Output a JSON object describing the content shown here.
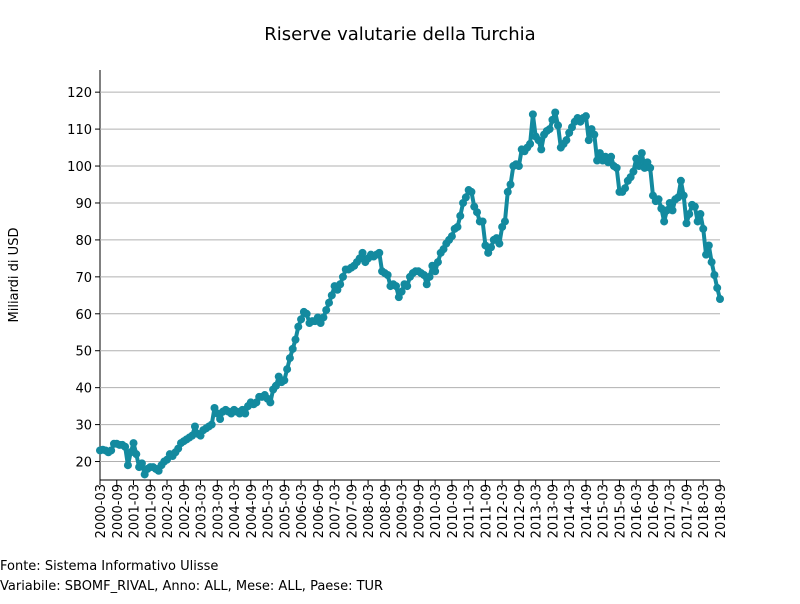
{
  "chart_data": {
    "type": "line",
    "title": "Riserve valutarie della Turchia",
    "y_label": "Miliardi di USD",
    "source": "Fonte: Sistema Informativo Ulisse",
    "note": "Variabile: SBOMF_RIVAL, Anno: ALL, Mese: ALL, Paese: TUR",
    "color": "#138a9f",
    "grid": true,
    "ylim": [
      15,
      126
    ],
    "yticks": [
      20,
      30,
      40,
      50,
      60,
      70,
      80,
      90,
      100,
      110,
      120
    ],
    "categories": [
      "2000-03",
      null,
      null,
      null,
      null,
      null,
      "2000-09",
      null,
      null,
      null,
      null,
      null,
      "2001-03",
      null,
      null,
      null,
      null,
      null,
      "2001-09",
      null,
      null,
      null,
      null,
      null,
      "2002-03",
      null,
      null,
      null,
      null,
      null,
      "2002-09",
      null,
      null,
      null,
      null,
      null,
      "2003-03",
      null,
      null,
      null,
      null,
      null,
      "2003-09",
      null,
      null,
      null,
      null,
      null,
      "2004-03",
      null,
      null,
      null,
      null,
      null,
      "2004-09",
      null,
      null,
      null,
      null,
      null,
      "2005-03",
      null,
      null,
      null,
      null,
      null,
      "2005-09",
      null,
      null,
      null,
      null,
      null,
      "2006-03",
      null,
      null,
      null,
      null,
      null,
      "2006-09",
      null,
      null,
      null,
      null,
      null,
      "2007-03",
      null,
      null,
      null,
      null,
      null,
      "2007-09",
      null,
      null,
      null,
      null,
      null,
      "2008-03",
      null,
      null,
      null,
      null,
      null,
      "2008-09",
      null,
      null,
      null,
      null,
      null,
      "2009-03",
      null,
      null,
      null,
      null,
      null,
      "2009-09",
      null,
      null,
      null,
      null,
      null,
      "2010-03",
      null,
      null,
      null,
      null,
      null,
      "2010-09",
      null,
      null,
      null,
      null,
      null,
      "2011-03",
      null,
      null,
      null,
      null,
      null,
      "2011-09",
      null,
      null,
      null,
      null,
      null,
      "2012-03",
      null,
      null,
      null,
      null,
      null,
      "2012-09",
      null,
      null,
      null,
      null,
      null,
      "2013-03",
      null,
      null,
      null,
      null,
      null,
      "2013-09",
      null,
      null,
      null,
      null,
      null,
      "2014-03",
      null,
      null,
      null,
      null,
      null,
      "2014-09",
      null,
      null,
      null,
      null,
      null,
      "2015-03",
      null,
      null,
      null,
      null,
      null,
      "2015-09",
      null,
      null,
      null,
      null,
      null,
      "2016-03",
      null,
      null,
      null,
      null,
      null,
      "2016-09",
      null,
      null,
      null,
      null,
      null,
      "2017-03",
      null,
      null,
      null,
      null,
      null,
      "2017-09",
      null,
      null,
      null,
      null,
      null,
      "2018-03",
      null,
      null,
      null,
      null,
      null,
      "2018-09"
    ],
    "values": [
      23,
      23.2,
      23,
      22.5,
      23,
      24.8,
      24.8,
      24.5,
      24.5,
      24,
      19,
      22.5,
      25,
      22,
      18.5,
      19.5,
      16.5,
      18,
      18.5,
      18.5,
      18,
      17.5,
      19,
      20,
      20.5,
      22,
      21.5,
      22.5,
      23.5,
      25,
      25.5,
      26,
      26.5,
      27,
      29.5,
      27.5,
      27,
      28.5,
      29,
      29.5,
      30,
      34.5,
      33,
      31.5,
      33.5,
      34,
      33.5,
      33,
      34,
      33.5,
      33,
      34,
      33,
      35,
      36,
      35.5,
      36,
      37.5,
      37.5,
      38,
      37,
      36,
      39.5,
      40.5,
      43,
      41.5,
      42,
      45,
      48,
      50.5,
      53,
      56.5,
      58.5,
      60.5,
      60,
      57.5,
      58,
      58,
      59,
      57.5,
      59,
      61,
      63,
      65,
      67.5,
      66.5,
      68,
      70,
      72,
      72,
      72.5,
      73,
      74,
      75,
      76.5,
      74,
      75,
      76,
      75.5,
      76,
      76.5,
      71.5,
      71,
      70.5,
      67.5,
      68,
      67.5,
      64.5,
      66,
      68,
      67.5,
      70,
      71,
      71.5,
      71.5,
      71,
      70.5,
      68,
      70,
      73,
      71.5,
      74,
      76.5,
      77.5,
      79,
      80,
      81,
      83,
      83.5,
      86.5,
      90,
      91.5,
      93.5,
      93,
      89,
      87.5,
      85,
      85,
      78.5,
      76.5,
      78,
      80,
      80.5,
      79,
      83.5,
      85,
      93,
      95,
      100,
      100.5,
      100,
      104.5,
      104,
      105,
      106,
      114,
      108,
      107,
      104.5,
      108.5,
      109.5,
      110,
      112.5,
      114.5,
      111,
      105,
      106,
      107,
      109,
      110.5,
      112,
      113,
      112,
      113,
      113.5,
      107,
      110,
      108.5,
      101.5,
      103.5,
      101.5,
      102.5,
      101,
      102.5,
      100,
      99.5,
      93,
      93,
      94,
      96,
      97,
      98.5,
      102,
      100,
      103.5,
      99.5,
      101,
      99.5,
      92,
      90.5,
      91,
      88.5,
      85,
      88,
      90,
      88,
      91,
      91.5,
      96,
      92,
      84.5,
      87,
      89.5,
      89,
      85,
      87,
      83,
      76,
      78.5,
      74,
      70.5,
      67,
      64
    ]
  }
}
